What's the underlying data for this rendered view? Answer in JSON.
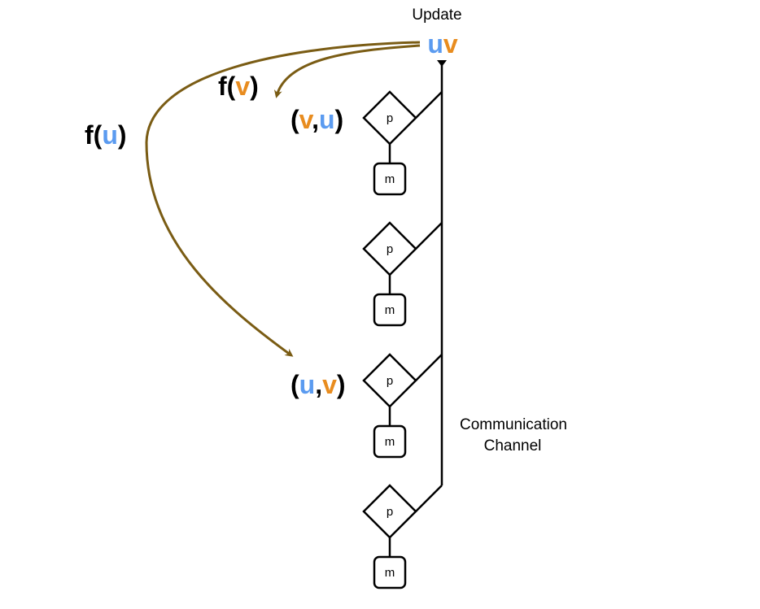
{
  "colors": {
    "u": "#5b9bf0",
    "v": "#e88c1f",
    "arrow": "#7a5c14",
    "line": "#000000"
  },
  "update": {
    "label": "Update",
    "u": "u",
    "v": "v"
  },
  "channel": {
    "line1": "Communication",
    "line2": "Channel"
  },
  "functions": {
    "fv": {
      "open": "f(",
      "var": "v",
      "close": ")"
    },
    "fu": {
      "open": "f(",
      "var": "u",
      "close": ")"
    }
  },
  "pairs": {
    "vu": {
      "open": "(",
      "first": "v",
      "comma": ",",
      "second": "u",
      "close": ")"
    },
    "uv": {
      "open": "(",
      "first": "u",
      "comma": ",",
      "second": "v",
      "close": ")"
    }
  },
  "nodes": [
    {
      "processor": "p",
      "memory": "m"
    },
    {
      "processor": "p",
      "memory": "m"
    },
    {
      "processor": "p",
      "memory": "m"
    },
    {
      "processor": "p",
      "memory": "m"
    }
  ]
}
